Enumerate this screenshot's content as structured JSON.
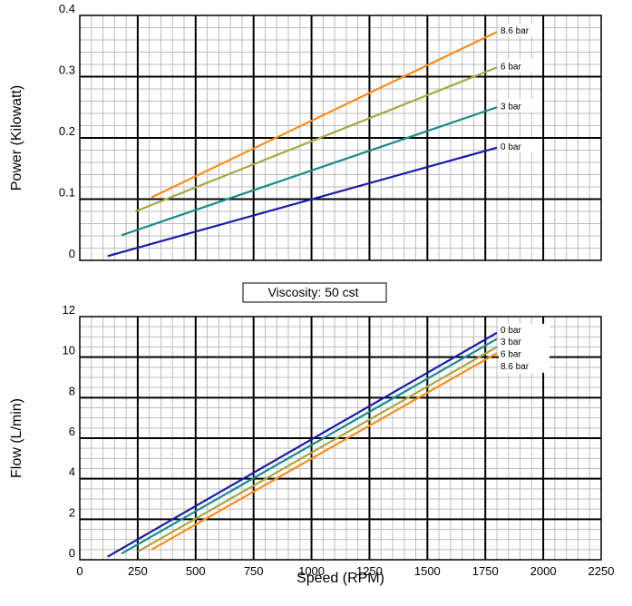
{
  "chart_data": [
    {
      "type": "line",
      "ylabel": "Power (Kilowatt)",
      "xlabel": "",
      "xlim": [
        0,
        2250
      ],
      "ylim": [
        0,
        0.4
      ],
      "x_ticks": [
        0,
        250,
        500,
        750,
        1000,
        1250,
        1500,
        1750,
        2000,
        2250
      ],
      "y_ticks": [
        0,
        0.1,
        0.2,
        0.3,
        0.4
      ],
      "y_tick_labels": [
        "0",
        "0.1",
        "0.2",
        "0.3",
        "0.4"
      ],
      "x_tick_labels_shown": false,
      "grid": true,
      "series": [
        {
          "name": "8.6 bar",
          "color": "#ff8c1a",
          "x": [
            310,
            1800
          ],
          "y": [
            0.103,
            0.373
          ]
        },
        {
          "name": "6 bar",
          "color": "#a8a840",
          "x": [
            240,
            1800
          ],
          "y": [
            0.08,
            0.315
          ]
        },
        {
          "name": "3 bar",
          "color": "#1a8c8c",
          "x": [
            180,
            1800
          ],
          "y": [
            0.041,
            0.25
          ]
        },
        {
          "name": "0 bar",
          "color": "#1a1aa8",
          "x": [
            120,
            1800
          ],
          "y": [
            0.007,
            0.184
          ]
        }
      ]
    },
    {
      "type": "line",
      "xlabel": "Speed (RPM)",
      "ylabel": "Flow (L/min)",
      "xlim": [
        0,
        2250
      ],
      "ylim": [
        0,
        12
      ],
      "x_ticks": [
        0,
        250,
        500,
        750,
        1000,
        1250,
        1500,
        1750,
        2000,
        2250
      ],
      "x_tick_labels": [
        "0",
        "250",
        "500",
        "750",
        "1000",
        "1250",
        "1500",
        "1750",
        "2000",
        "2250"
      ],
      "y_ticks": [
        0,
        2,
        4,
        6,
        8,
        10,
        12
      ],
      "y_tick_labels": [
        "0",
        "2",
        "4",
        "6",
        "8",
        "10",
        "12"
      ],
      "grid": true,
      "series": [
        {
          "name": "0 bar",
          "color": "#1a1aa8",
          "x": [
            120,
            1800
          ],
          "y": [
            0.15,
            11.2
          ]
        },
        {
          "name": "3 bar",
          "color": "#1a8c8c",
          "x": [
            180,
            1800
          ],
          "y": [
            0.3,
            10.9
          ]
        },
        {
          "name": "6 bar",
          "color": "#a8a840",
          "x": [
            250,
            1800
          ],
          "y": [
            0.4,
            10.5
          ]
        },
        {
          "name": "8.6 bar",
          "color": "#ff8c1a",
          "x": [
            310,
            1800
          ],
          "y": [
            0.5,
            10.2
          ]
        }
      ],
      "label_order": [
        "0 bar",
        "3 bar",
        "6 bar",
        "8.6 bar"
      ]
    }
  ],
  "annotation": {
    "text": "Viscosity: 50 cst"
  },
  "colors": {
    "major_grid": "#000000",
    "minor_grid": "#bdbdbd"
  }
}
